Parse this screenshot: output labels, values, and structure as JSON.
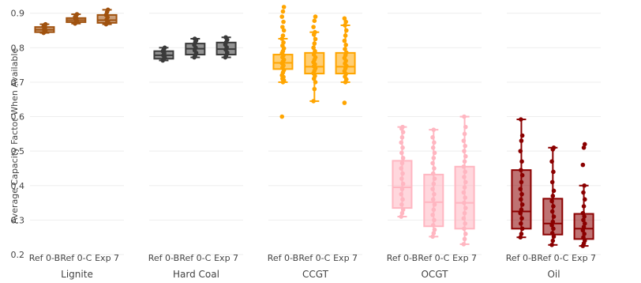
{
  "chart_data": {
    "type": "box",
    "ylabel": "Average Capacity Factor When Available",
    "ylim": [
      0.2,
      0.92
    ],
    "yticks": [
      "0.2",
      "0.3",
      "0.4",
      "0.5",
      "0.6",
      "0.7",
      "0.8",
      "0.9"
    ],
    "grid": true,
    "categories": [
      "Ref 0-B",
      "Ref 0-C",
      "Exp 7"
    ],
    "facets": [
      {
        "name": "Lignite",
        "color": "#a0520f",
        "boxes": [
          {
            "category": "Ref 0-B",
            "min": 0.843,
            "q1": 0.845,
            "median": 0.852,
            "q3": 0.86,
            "max": 0.868,
            "points": [
              0.843,
              0.846,
              0.85,
              0.853,
              0.858,
              0.862,
              0.866,
              0.868
            ]
          },
          {
            "category": "Ref 0-C",
            "min": 0.87,
            "q1": 0.874,
            "median": 0.88,
            "q3": 0.886,
            "max": 0.897,
            "points": [
              0.87,
              0.874,
              0.878,
              0.882,
              0.885,
              0.889,
              0.894,
              0.897
            ]
          },
          {
            "category": "Exp 7",
            "min": 0.868,
            "q1": 0.872,
            "median": 0.88,
            "q3": 0.895,
            "max": 0.91,
            "points": [
              0.868,
              0.872,
              0.876,
              0.881,
              0.888,
              0.895,
              0.903,
              0.91
            ]
          }
        ]
      },
      {
        "name": "Hard Coal",
        "color": "#3a3a3a",
        "boxes": [
          {
            "category": "Ref 0-B",
            "min": 0.763,
            "q1": 0.768,
            "median": 0.778,
            "q3": 0.79,
            "max": 0.8,
            "points": [
              0.763,
              0.767,
              0.772,
              0.778,
              0.784,
              0.79,
              0.795,
              0.8
            ]
          },
          {
            "category": "Ref 0-C",
            "min": 0.772,
            "q1": 0.78,
            "median": 0.797,
            "q3": 0.812,
            "max": 0.826,
            "points": [
              0.772,
              0.778,
              0.785,
              0.792,
              0.8,
              0.808,
              0.815,
              0.821,
              0.826
            ]
          },
          {
            "category": "Exp 7",
            "min": 0.772,
            "q1": 0.78,
            "median": 0.796,
            "q3": 0.815,
            "max": 0.83,
            "points": [
              0.772,
              0.778,
              0.786,
              0.794,
              0.801,
              0.809,
              0.816,
              0.823,
              0.83
            ]
          }
        ]
      },
      {
        "name": "CCGT",
        "color": "#ffa500",
        "boxes": [
          {
            "category": "Ref 0-B",
            "min": 0.7,
            "q1": 0.738,
            "median": 0.756,
            "q3": 0.78,
            "max": 0.826,
            "points": [
              0.6,
              0.7,
              0.705,
              0.71,
              0.715,
              0.72,
              0.728,
              0.735,
              0.742,
              0.748,
              0.755,
              0.76,
              0.765,
              0.772,
              0.778,
              0.784,
              0.79,
              0.798,
              0.806,
              0.815,
              0.826,
              0.835,
              0.85,
              0.86,
              0.875,
              0.89,
              0.905,
              0.918
            ]
          },
          {
            "category": "Ref 0-C",
            "min": 0.645,
            "q1": 0.725,
            "median": 0.745,
            "q3": 0.785,
            "max": 0.845,
            "points": [
              0.645,
              0.68,
              0.7,
              0.71,
              0.718,
              0.726,
              0.733,
              0.74,
              0.746,
              0.752,
              0.758,
              0.765,
              0.772,
              0.78,
              0.79,
              0.8,
              0.812,
              0.825,
              0.838,
              0.845,
              0.86,
              0.878,
              0.89
            ]
          },
          {
            "category": "Exp 7",
            "min": 0.7,
            "q1": 0.725,
            "median": 0.745,
            "q3": 0.785,
            "max": 0.865,
            "points": [
              0.64,
              0.7,
              0.708,
              0.716,
              0.724,
              0.732,
              0.74,
              0.747,
              0.754,
              0.762,
              0.77,
              0.778,
              0.786,
              0.796,
              0.808,
              0.82,
              0.835,
              0.85,
              0.865,
              0.875,
              0.885
            ]
          }
        ]
      },
      {
        "name": "OCGT",
        "color": "#ffb6c1",
        "boxes": [
          {
            "category": "Ref 0-B",
            "min": 0.31,
            "q1": 0.335,
            "median": 0.395,
            "q3": 0.472,
            "max": 0.57,
            "points": [
              0.31,
              0.32,
              0.33,
              0.345,
              0.36,
              0.375,
              0.39,
              0.405,
              0.42,
              0.435,
              0.45,
              0.465,
              0.48,
              0.495,
              0.51,
              0.525,
              0.54,
              0.555,
              0.565,
              0.57
            ]
          },
          {
            "category": "Ref 0-C",
            "min": 0.252,
            "q1": 0.282,
            "median": 0.352,
            "q3": 0.432,
            "max": 0.562,
            "points": [
              0.252,
              0.262,
              0.272,
              0.285,
              0.3,
              0.315,
              0.33,
              0.345,
              0.36,
              0.375,
              0.39,
              0.405,
              0.42,
              0.435,
              0.45,
              0.465,
              0.48,
              0.495,
              0.51,
              0.525,
              0.54,
              0.562
            ]
          },
          {
            "category": "Exp 7",
            "min": 0.23,
            "q1": 0.275,
            "median": 0.35,
            "q3": 0.455,
            "max": 0.6,
            "points": [
              0.23,
              0.245,
              0.26,
              0.275,
              0.29,
              0.305,
              0.32,
              0.335,
              0.35,
              0.365,
              0.38,
              0.395,
              0.41,
              0.425,
              0.44,
              0.455,
              0.47,
              0.485,
              0.5,
              0.515,
              0.53,
              0.55,
              0.57,
              0.6
            ]
          }
        ]
      },
      {
        "name": "Oil",
        "color": "#8b0000",
        "boxes": [
          {
            "category": "Ref 0-B",
            "min": 0.25,
            "q1": 0.275,
            "median": 0.325,
            "q3": 0.445,
            "max": 0.592,
            "points": [
              0.25,
              0.26,
              0.275,
              0.29,
              0.305,
              0.32,
              0.33,
              0.345,
              0.36,
              0.375,
              0.39,
              0.41,
              0.43,
              0.445,
              0.47,
              0.5,
              0.53,
              0.545,
              0.592
            ]
          },
          {
            "category": "Ref 0-C",
            "min": 0.228,
            "q1": 0.258,
            "median": 0.29,
            "q3": 0.362,
            "max": 0.51,
            "points": [
              0.228,
              0.24,
              0.252,
              0.262,
              0.275,
              0.285,
              0.295,
              0.31,
              0.325,
              0.34,
              0.355,
              0.37,
              0.385,
              0.41,
              0.44,
              0.47,
              0.505,
              0.51
            ]
          },
          {
            "category": "Exp 7",
            "min": 0.225,
            "q1": 0.245,
            "median": 0.275,
            "q3": 0.318,
            "max": 0.4,
            "points": [
              0.225,
              0.232,
              0.24,
              0.25,
              0.26,
              0.27,
              0.28,
              0.29,
              0.3,
              0.31,
              0.32,
              0.34,
              0.36,
              0.38,
              0.4,
              0.46,
              0.51,
              0.52
            ]
          }
        ]
      }
    ]
  }
}
